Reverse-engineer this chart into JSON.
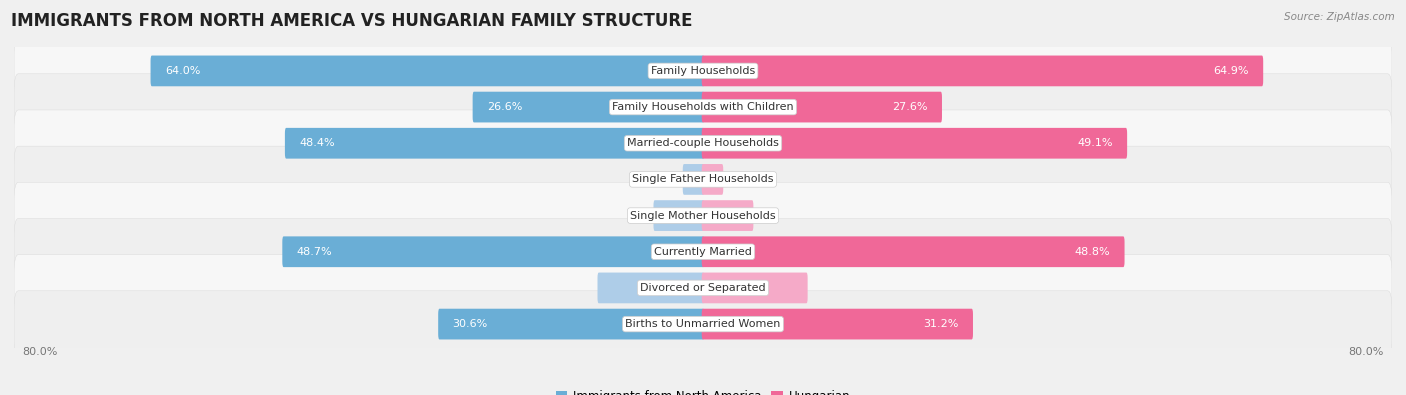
{
  "title": "IMMIGRANTS FROM NORTH AMERICA VS HUNGARIAN FAMILY STRUCTURE",
  "source": "Source: ZipAtlas.com",
  "categories": [
    "Family Households",
    "Family Households with Children",
    "Married-couple Households",
    "Single Father Households",
    "Single Mother Households",
    "Currently Married",
    "Divorced or Separated",
    "Births to Unmarried Women"
  ],
  "left_values": [
    64.0,
    26.6,
    48.4,
    2.2,
    5.6,
    48.7,
    12.1,
    30.6
  ],
  "right_values": [
    64.9,
    27.6,
    49.1,
    2.2,
    5.7,
    48.8,
    12.0,
    31.2
  ],
  "left_color_strong": "#6aaed6",
  "left_color_light": "#aecde8",
  "right_color_strong": "#f06898",
  "right_color_light": "#f5aac8",
  "max_val": 80.0,
  "bg_color": "#f0f0f0",
  "row_colors": [
    "#f7f7f7",
    "#efefef"
  ],
  "label_color_white": "#ffffff",
  "label_color_dark": "#555555",
  "legend_left_label": "Immigrants from North America",
  "legend_right_label": "Hungarian",
  "title_fontsize": 12,
  "bar_label_fontsize": 8,
  "category_fontsize": 8,
  "threshold_white_label": 15.0
}
